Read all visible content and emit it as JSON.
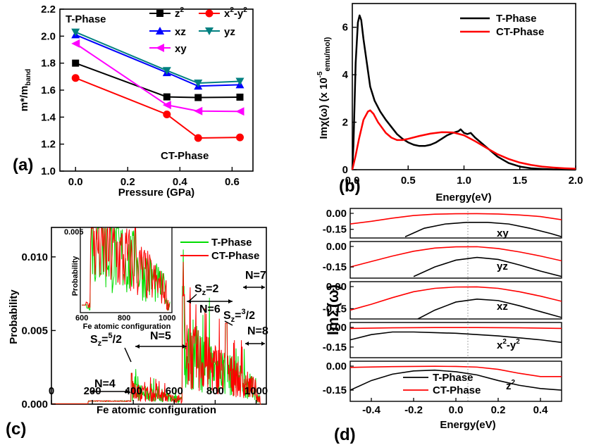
{
  "chart_data": [
    {
      "type": "line",
      "panel": "(a)",
      "xlabel": "Pressure (GPa)",
      "ylabel": "m*/m",
      "ylabel_sub": "band",
      "xlim": [
        -0.06,
        0.68
      ],
      "ylim": [
        1.0,
        2.2
      ],
      "xticks": [
        "0.0",
        "0.2",
        "0.4",
        "0.6"
      ],
      "yticks": [
        "1.0",
        "1.2",
        "1.4",
        "1.6",
        "1.8",
        "2.0",
        "2.2"
      ],
      "x": [
        0.0,
        0.35,
        0.47,
        0.63
      ],
      "annotations": [
        "T-Phase",
        "CT-Phase"
      ],
      "series": [
        {
          "name": "z",
          "sup": "2",
          "color": "#000000",
          "marker": "square",
          "values": [
            1.8,
            1.55,
            1.545,
            1.548
          ]
        },
        {
          "name": "x",
          "sup": "2",
          "name2": "-y",
          "sup2": "2",
          "color": "#ff0000",
          "marker": "circle",
          "values": [
            1.69,
            1.42,
            1.245,
            1.25
          ]
        },
        {
          "name": "xz",
          "color": "#0000ff",
          "marker": "triangle-up",
          "values": [
            2.01,
            1.73,
            1.63,
            1.64
          ]
        },
        {
          "name": "yz",
          "color": "#008080",
          "marker": "triangle-down",
          "values": [
            2.03,
            1.745,
            1.652,
            1.665
          ]
        },
        {
          "name": "xy",
          "color": "#ff00ff",
          "marker": "triangle-left",
          "values": [
            1.945,
            1.49,
            1.445,
            1.442
          ]
        }
      ]
    },
    {
      "type": "line",
      "panel": "(b)",
      "xlabel": "Energy(eV)",
      "ylabel": "Imχ(ω) (x 10",
      "ylabel_sup": "-5",
      "ylabel_sub": "emu/mol)",
      "xlim": [
        0.0,
        2.0
      ],
      "ylim": [
        0,
        7
      ],
      "xticks": [
        "0.0",
        "0.5",
        "1.0",
        "1.5",
        "2.0"
      ],
      "yticks": [
        "0",
        "2",
        "4",
        "6"
      ],
      "series": [
        {
          "name": "T-Phase",
          "color": "#000000",
          "points": [
            [
              0.0,
              0.0
            ],
            [
              0.01,
              1.0
            ],
            [
              0.03,
              4.5
            ],
            [
              0.05,
              6.2
            ],
            [
              0.065,
              6.5
            ],
            [
              0.08,
              6.3
            ],
            [
              0.1,
              5.5
            ],
            [
              0.13,
              4.5
            ],
            [
              0.16,
              3.5
            ],
            [
              0.2,
              2.9
            ],
            [
              0.25,
              2.45
            ],
            [
              0.3,
              2.1
            ],
            [
              0.35,
              1.8
            ],
            [
              0.4,
              1.5
            ],
            [
              0.45,
              1.3
            ],
            [
              0.5,
              1.15
            ],
            [
              0.55,
              1.05
            ],
            [
              0.6,
              1.0
            ],
            [
              0.65,
              1.0
            ],
            [
              0.7,
              1.05
            ],
            [
              0.75,
              1.15
            ],
            [
              0.8,
              1.3
            ],
            [
              0.85,
              1.45
            ],
            [
              0.9,
              1.55
            ],
            [
              0.95,
              1.62
            ],
            [
              0.97,
              1.7
            ],
            [
              1.0,
              1.55
            ],
            [
              1.03,
              1.5
            ],
            [
              1.06,
              1.55
            ],
            [
              1.1,
              1.35
            ],
            [
              1.2,
              0.95
            ],
            [
              1.3,
              0.55
            ],
            [
              1.4,
              0.28
            ],
            [
              1.5,
              0.13
            ],
            [
              1.6,
              0.06
            ],
            [
              1.7,
              0.03
            ],
            [
              1.8,
              0.01
            ],
            [
              2.0,
              0.0
            ]
          ]
        },
        {
          "name": "CT-Phase",
          "color": "#ff0000",
          "points": [
            [
              0.0,
              0.0
            ],
            [
              0.03,
              0.6
            ],
            [
              0.06,
              1.3
            ],
            [
              0.1,
              2.1
            ],
            [
              0.14,
              2.45
            ],
            [
              0.16,
              2.5
            ],
            [
              0.19,
              2.35
            ],
            [
              0.23,
              2.0
            ],
            [
              0.3,
              1.55
            ],
            [
              0.35,
              1.35
            ],
            [
              0.4,
              1.25
            ],
            [
              0.45,
              1.25
            ],
            [
              0.5,
              1.3
            ],
            [
              0.6,
              1.42
            ],
            [
              0.7,
              1.52
            ],
            [
              0.8,
              1.58
            ],
            [
              0.9,
              1.57
            ],
            [
              1.0,
              1.45
            ],
            [
              1.1,
              1.2
            ],
            [
              1.2,
              0.92
            ],
            [
              1.3,
              0.65
            ],
            [
              1.4,
              0.45
            ],
            [
              1.5,
              0.3
            ],
            [
              1.6,
              0.2
            ],
            [
              1.7,
              0.13
            ],
            [
              1.8,
              0.09
            ],
            [
              1.9,
              0.06
            ],
            [
              2.0,
              0.04
            ]
          ]
        }
      ]
    },
    {
      "type": "line",
      "panel": "(c)",
      "xlabel": "Fe atomic configuration",
      "ylabel": "Probability",
      "xlim": [
        0,
        1050
      ],
      "ylim": [
        0,
        0.012
      ],
      "xticks": [
        "0",
        "200",
        "400",
        "600",
        "800",
        "1000"
      ],
      "yticks": [
        "0.000",
        "0.005",
        "0.010"
      ],
      "series": [
        {
          "name": "T-Phase",
          "color": "#00dd00"
        },
        {
          "name": "CT-Phase",
          "color": "#ff0000"
        }
      ],
      "annotations": {
        "n4": "N=4",
        "n5": "N=5",
        "n6": "N=6",
        "n7": "N=7",
        "n8": "N=8",
        "sz2": "S",
        "sz2_sub": "z",
        "sz2_val": "=2",
        "sz52": "S",
        "sz52_sub": "z",
        "sz52_eq": "=",
        "sz52_num": "5",
        "sz52_den": "/2",
        "sz32": "S",
        "sz32_sub": "z",
        "sz32_eq": "=",
        "sz32_num": "3",
        "sz32_den": "/2"
      },
      "inset": {
        "xlabel": "Fe atomic configuration",
        "ylabel": "Probability",
        "xticks": [
          "600",
          "800",
          "1000"
        ],
        "yticks": [
          "0.005"
        ]
      }
    },
    {
      "type": "line",
      "panel": "(d)",
      "xlabel": "Energy(eV)",
      "ylabel": "ImΣ(ω)",
      "xlim": [
        -0.5,
        0.5
      ],
      "xticks": [
        "-0.4",
        "-0.2",
        "0.0",
        "0.2",
        "0.4"
      ],
      "yticks": [
        "0.00",
        "-0.15"
      ],
      "legend": [
        "T-Phase",
        "CT-Phase"
      ],
      "subpanels": [
        {
          "label": "xy",
          "black": [
            [
              -0.24,
              -0.22
            ],
            [
              -0.15,
              -0.14
            ],
            [
              -0.05,
              -0.1
            ],
            [
              0.05,
              -0.085
            ],
            [
              0.15,
              -0.085
            ],
            [
              0.25,
              -0.1
            ],
            [
              0.35,
              -0.14
            ],
            [
              0.45,
              -0.19
            ],
            [
              0.5,
              -0.22
            ]
          ],
          "red": [
            [
              -0.5,
              -0.1
            ],
            [
              -0.4,
              -0.075
            ],
            [
              -0.3,
              -0.045
            ],
            [
              -0.2,
              -0.02
            ],
            [
              -0.1,
              -0.008
            ],
            [
              0.0,
              -0.004
            ],
            [
              0.1,
              -0.003
            ],
            [
              0.2,
              -0.006
            ],
            [
              0.3,
              -0.015
            ],
            [
              0.4,
              -0.03
            ],
            [
              0.5,
              -0.06
            ]
          ]
        },
        {
          "label": "yz",
          "black": [
            [
              -0.2,
              -0.22
            ],
            [
              -0.1,
              -0.15
            ],
            [
              0.0,
              -0.1
            ],
            [
              0.1,
              -0.08
            ],
            [
              0.2,
              -0.095
            ],
            [
              0.3,
              -0.135
            ],
            [
              0.4,
              -0.18
            ],
            [
              0.5,
              -0.22
            ]
          ],
          "red": [
            [
              -0.5,
              -0.15
            ],
            [
              -0.4,
              -0.11
            ],
            [
              -0.3,
              -0.07
            ],
            [
              -0.2,
              -0.035
            ],
            [
              -0.1,
              -0.012
            ],
            [
              0.0,
              -0.003
            ],
            [
              0.1,
              -0.002
            ],
            [
              0.2,
              -0.015
            ],
            [
              0.3,
              -0.04
            ],
            [
              0.4,
              -0.07
            ],
            [
              0.5,
              -0.105
            ]
          ]
        },
        {
          "label": "xz",
          "black": [
            [
              -0.18,
              -0.22
            ],
            [
              -0.1,
              -0.16
            ],
            [
              0.0,
              -0.105
            ],
            [
              0.1,
              -0.085
            ],
            [
              0.2,
              -0.095
            ],
            [
              0.3,
              -0.13
            ],
            [
              0.4,
              -0.17
            ],
            [
              0.5,
              -0.21
            ]
          ],
          "red": [
            [
              -0.5,
              -0.16
            ],
            [
              -0.4,
              -0.12
            ],
            [
              -0.3,
              -0.075
            ],
            [
              -0.2,
              -0.035
            ],
            [
              -0.1,
              -0.012
            ],
            [
              0.0,
              -0.003
            ],
            [
              0.1,
              -0.002
            ],
            [
              0.2,
              -0.012
            ],
            [
              0.3,
              -0.035
            ],
            [
              0.4,
              -0.065
            ],
            [
              0.5,
              -0.1
            ]
          ]
        },
        {
          "label": "x",
          "label_sup": "2",
          "label2": "-y",
          "label2_sup": "2",
          "black": [
            [
              -0.5,
              -0.095
            ],
            [
              -0.4,
              -0.055
            ],
            [
              -0.3,
              -0.035
            ],
            [
              -0.2,
              -0.035
            ],
            [
              -0.1,
              -0.04
            ],
            [
              0.0,
              -0.045
            ],
            [
              0.1,
              -0.055
            ],
            [
              0.2,
              -0.065
            ],
            [
              0.3,
              -0.08
            ],
            [
              0.4,
              -0.095
            ],
            [
              0.5,
              -0.115
            ]
          ],
          "red": [
            [
              -0.5,
              -0.008
            ],
            [
              -0.3,
              -0.003
            ],
            [
              -0.1,
              -0.001
            ],
            [
              0.1,
              -0.001
            ],
            [
              0.3,
              -0.003
            ],
            [
              0.5,
              -0.008
            ]
          ]
        },
        {
          "label": "z",
          "label_sup": "2",
          "black": [
            [
              -0.5,
              -0.15
            ],
            [
              -0.4,
              -0.09
            ],
            [
              -0.3,
              -0.05
            ],
            [
              -0.2,
              -0.03
            ],
            [
              -0.1,
              -0.025
            ],
            [
              0.0,
              -0.035
            ],
            [
              0.1,
              -0.055
            ],
            [
              0.2,
              -0.09
            ],
            [
              0.3,
              -0.12
            ],
            [
              0.4,
              -0.14
            ],
            [
              0.5,
              -0.15
            ]
          ],
          "red": [
            [
              -0.5,
              -0.008
            ],
            [
              -0.3,
              -0.003
            ],
            [
              -0.1,
              -0.001
            ],
            [
              0.0,
              -0.002
            ],
            [
              0.1,
              -0.006
            ],
            [
              0.2,
              -0.02
            ],
            [
              0.3,
              -0.045
            ],
            [
              0.4,
              -0.065
            ],
            [
              0.5,
              -0.065
            ]
          ]
        }
      ]
    }
  ]
}
